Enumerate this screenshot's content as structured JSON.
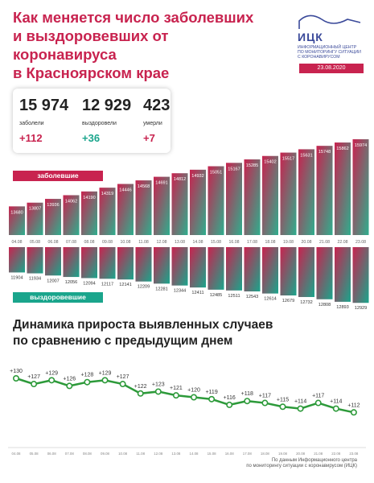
{
  "header": {
    "title_lines": [
      "Как меняется число заболевших",
      "и выздоровевших от коронавируса",
      "в Красноярском крае"
    ],
    "logo_name": "ИЦК",
    "logo_subtitle": [
      "ИНФОРМАЦИОННЫЙ ЦЕНТР",
      "ПО МОНИТОРИНГУ СИТУАЦИИ",
      "С КОРОНАВИРУСОМ"
    ],
    "date": "23.08.2020"
  },
  "summary": {
    "sick": {
      "value": "15 974",
      "label": "заболели",
      "delta": "+112"
    },
    "recovered": {
      "value": "12 929",
      "label": "выздоровели",
      "delta": "+36"
    },
    "died": {
      "value": "423",
      "label": "умерли",
      "delta": "+7"
    }
  },
  "labels": {
    "sick_tag": "заболевшие",
    "recovered_tag": "выздоровевшие"
  },
  "subtitle_lines": [
    "Динамика прироста выявленных случаев",
    "по сравнению с предыдущим днем"
  ],
  "footnote_lines": [
    "По данным Информационного центра",
    "по мониторингу ситуации с коронавирусом (ИЦК)"
  ],
  "colors": {
    "sick": "#c8234f",
    "recovered": "#1aa58c",
    "line": "#2d9a3a",
    "logo": "#3b4a9a"
  },
  "chart_data": [
    {
      "type": "bar",
      "series_name": "заболевшие",
      "categories": [
        "04.08",
        "05.08",
        "06.08",
        "07.08",
        "08.08",
        "09.08",
        "10.08",
        "11.08",
        "12.08",
        "13.08",
        "14.08",
        "15.08",
        "16.08",
        "17.08",
        "18.08",
        "19.08",
        "20.08",
        "21.08",
        "22.08",
        "23.08"
      ],
      "values": [
        13680,
        13807,
        13936,
        14062,
        14190,
        14319,
        14446,
        14568,
        14691,
        14812,
        14932,
        15051,
        15167,
        15285,
        15402,
        15517,
        15631,
        15748,
        15862,
        15974
      ],
      "ylim": [
        12700,
        16000
      ]
    },
    {
      "type": "bar",
      "series_name": "выздоровевшие",
      "categories": [
        "04.08",
        "05.08",
        "06.08",
        "07.08",
        "08.08",
        "09.08",
        "10.08",
        "11.08",
        "12.08",
        "13.08",
        "14.08",
        "15.08",
        "16.08",
        "17.08",
        "18.08",
        "19.08",
        "20.08",
        "21.08",
        "22.08",
        "23.08"
      ],
      "values": [
        11904,
        11934,
        12007,
        12056,
        12094,
        12117,
        12141,
        12209,
        12281,
        12344,
        12411,
        12485,
        12511,
        12543,
        12614,
        12679,
        12732,
        12808,
        12893,
        12929
      ],
      "ylim": [
        11050,
        12950
      ]
    },
    {
      "type": "line",
      "categories": [
        "04.08",
        "05.08",
        "06.08",
        "07.08",
        "08.08",
        "09.08",
        "10.08",
        "11.08",
        "12.08",
        "13.08",
        "14.08",
        "15.08",
        "16.08",
        "17.08",
        "18.08",
        "19.08",
        "20.08",
        "21.08",
        "22.08",
        "23.08"
      ],
      "values": [
        130,
        127,
        129,
        126,
        128,
        129,
        127,
        122,
        123,
        121,
        120,
        119,
        116,
        118,
        117,
        115,
        114,
        117,
        114,
        112
      ],
      "labels": [
        "+130",
        "+127",
        "+129",
        "+126",
        "+128",
        "+129",
        "+127",
        "+122",
        "+123",
        "+121",
        "+120",
        "+119",
        "+116",
        "+118",
        "+117",
        "+115",
        "+114",
        "+117",
        "+114",
        "+112"
      ],
      "ylim": [
        100,
        135
      ]
    }
  ]
}
